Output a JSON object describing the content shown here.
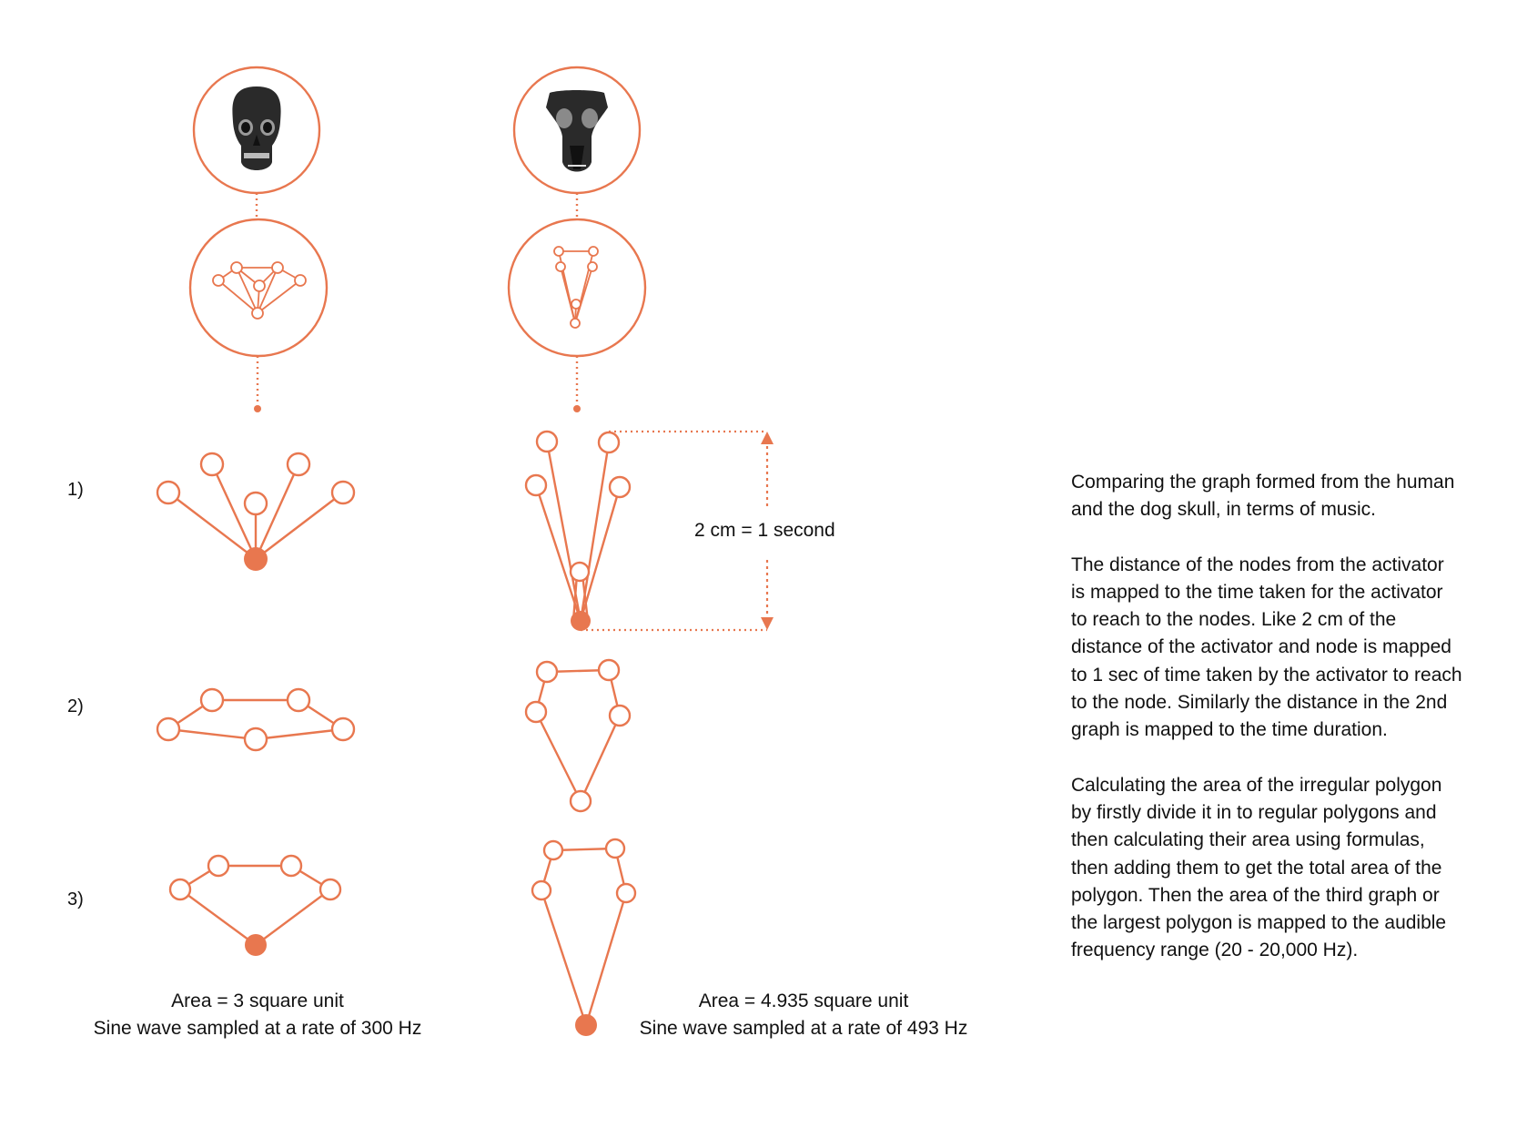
{
  "accent": "#E8774F",
  "human": {
    "step_labels": [
      "1)",
      "2)",
      "3)"
    ],
    "caption_area": "Area = 3 square unit",
    "caption_rate": "Sine wave sampled at a rate of 300 Hz"
  },
  "dog": {
    "scale_label": "2 cm = 1 second",
    "caption_area": "Area = 4.935 square unit",
    "caption_rate": "Sine wave sampled at a rate of 493 Hz"
  },
  "explanation": [
    "Comparing the graph formed from the human and the dog skull, in terms of music.",
    "The distance of the nodes from the activator is mapped to the time taken for the activator to reach to the nodes. Like 2 cm of the distance of the activator and node is mapped to 1 sec of time taken by the activator to reach to the node. Similarly the distance in the 2nd graph is mapped to the time duration.",
    "Calculating the area of the irregular polygon by firstly divide it in to regular polygons and then calculating their area using formulas, then adding them to get the total area of the polygon. Then the area of the third graph or the largest polygon is mapped to the audible frequency range (20 - 20,000 Hz)."
  ]
}
